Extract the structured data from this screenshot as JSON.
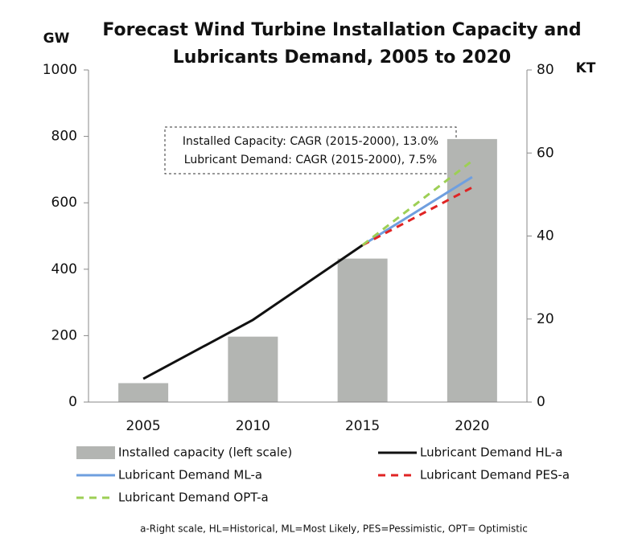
{
  "chart_data": {
    "type": "bar",
    "title": [
      "Forecast Wind Turbine Installation Capacity and",
      "Lubricants Demand, 2005 to 2020"
    ],
    "y_label": "GW",
    "y2_label": "KT",
    "categories": [
      "2005",
      "2010",
      "2015",
      "2020"
    ],
    "series": [
      {
        "name": "Installed capacity (left scale)",
        "type": "bar",
        "color": "#b3b5b2",
        "values": [
          57,
          197,
          432,
          792
        ]
      },
      {
        "name": "Lubricant Demand HL-a",
        "type": "line",
        "axis": "y2",
        "color": "#111111",
        "dashed": false,
        "values": [
          5.6,
          19.8,
          37.8,
          null
        ]
      },
      {
        "name": "Lubricant Demand ML-a",
        "type": "line",
        "axis": "y2",
        "color": "#6f9fdf",
        "dashed": false,
        "values": [
          null,
          null,
          37.8,
          54.2
        ]
      },
      {
        "name": "Lubricant Demand PES-a",
        "type": "line",
        "axis": "y2",
        "color": "#e02424",
        "dashed": true,
        "values": [
          null,
          null,
          37.8,
          51.7
        ]
      },
      {
        "name": "Lubricant Demand OPT-a",
        "type": "line",
        "axis": "y2",
        "color": "#9dcf55",
        "dashed": true,
        "values": [
          null,
          null,
          37.8,
          58.1
        ]
      }
    ],
    "ylim": [
      0,
      1000
    ],
    "yticks": [
      0,
      200,
      400,
      600,
      800,
      1000
    ],
    "y2lim": [
      0,
      80
    ],
    "y2ticks": [
      0,
      20,
      40,
      60,
      80
    ],
    "annotation": [
      "Installed Capacity: CAGR (2015-2000), 13.0%",
      "Lubricant Demand: CAGR (2015-2000), 7.5%"
    ],
    "footnote": "a-Right scale, HL=Historical, ML=Most Likely, PES=Pessimistic, OPT= Optimistic"
  }
}
